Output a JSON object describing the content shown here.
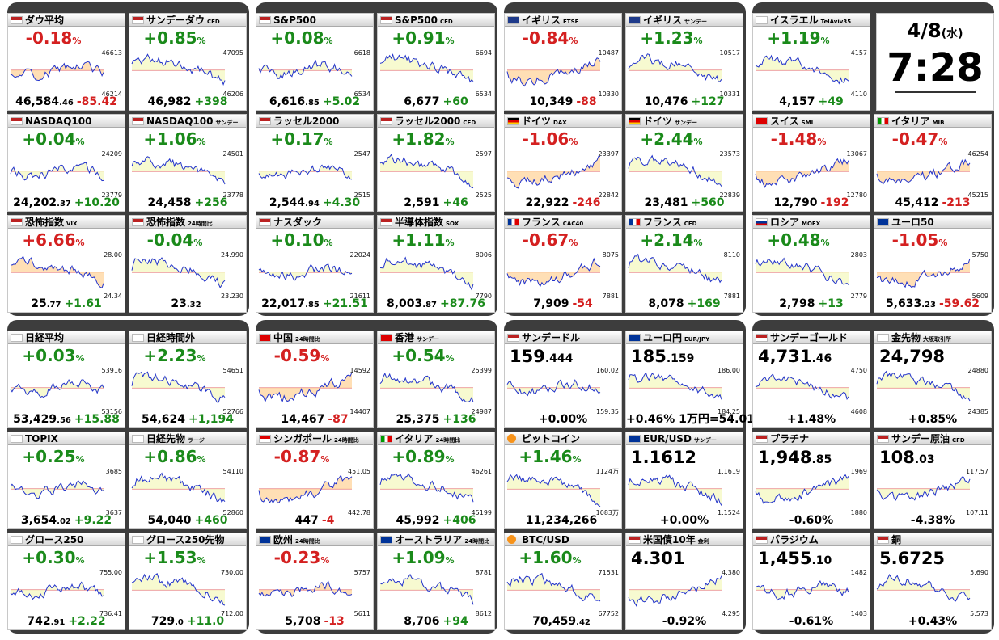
{
  "clock": {
    "date": "4/8",
    "weekday": "(水)",
    "time": "7:28"
  },
  "panels": [
    "top-1",
    "top-2",
    "top-3",
    "top-4",
    "bottom-1",
    "bottom-2",
    "bottom-3",
    "bottom-4"
  ],
  "cards": [
    {
      "id": "dow",
      "title": "ダウ平均",
      "sub": "",
      "flag": "us",
      "change": "-0.18",
      "dir": "dn",
      "hi": "46613",
      "lo": "46214",
      "price": "46,584",
      "dec": ".46",
      "delta": "-85.42",
      "trend": "flat"
    },
    {
      "id": "sunday-dow",
      "title": "サンデーダウ",
      "sub": "CFD",
      "flag": "us",
      "change": "+0.85",
      "dir": "up",
      "hi": "47095",
      "lo": "46206",
      "price": "46,982",
      "dec": "",
      "delta": "+398",
      "trend": "up"
    },
    {
      "id": "sp500",
      "title": "S&P500",
      "sub": "",
      "flag": "us",
      "change": "+0.08",
      "dir": "up",
      "hi": "6618",
      "lo": "6534",
      "price": "6,616",
      "dec": ".85",
      "delta": "+5.02",
      "trend": "flat"
    },
    {
      "id": "sp500-cfd",
      "title": "S&P500",
      "sub": "CFD",
      "flag": "us",
      "change": "+0.91",
      "dir": "up",
      "hi": "6694",
      "lo": "6534",
      "price": "6,677",
      "dec": "",
      "delta": "+60",
      "trend": "up"
    },
    {
      "id": "ftse",
      "title": "イギリス",
      "sub": "FTSE",
      "flag": "uk",
      "change": "-0.84",
      "dir": "dn",
      "hi": "10487",
      "lo": "10330",
      "price": "10,349",
      "dec": "",
      "delta": "-88",
      "trend": "down"
    },
    {
      "id": "uk-sunday",
      "title": "イギリス",
      "sub": "サンデー",
      "flag": "uk",
      "change": "+1.23",
      "dir": "up",
      "hi": "10517",
      "lo": "10331",
      "price": "10,476",
      "dec": "",
      "delta": "+127",
      "trend": "up"
    },
    {
      "id": "israel",
      "title": "イスラエル",
      "sub": "TelAviv35",
      "flag": "il",
      "change": "+1.19",
      "dir": "up",
      "hi": "4157",
      "lo": "4110",
      "price": "4,157",
      "dec": "",
      "delta": "+49",
      "trend": "up"
    },
    {
      "id": "nasdaq100",
      "title": "NASDAQ100",
      "sub": "",
      "flag": "us",
      "change": "+0.04",
      "dir": "up",
      "hi": "24209",
      "lo": "23779",
      "price": "24,202",
      "dec": ".37",
      "delta": "+10.20",
      "trend": "flat"
    },
    {
      "id": "nasdaq100-sunday",
      "title": "NASDAQ100",
      "sub": "サンデー",
      "flag": "us",
      "change": "+1.06",
      "dir": "up",
      "hi": "24501",
      "lo": "23778",
      "price": "24,458",
      "dec": "",
      "delta": "+256",
      "trend": "up"
    },
    {
      "id": "russell2000",
      "title": "ラッセル2000",
      "sub": "",
      "flag": "us",
      "change": "+0.17",
      "dir": "up",
      "hi": "2547",
      "lo": "2515",
      "price": "2,544",
      "dec": ".94",
      "delta": "+4.30",
      "trend": "flat"
    },
    {
      "id": "russell2000-cfd",
      "title": "ラッセル2000",
      "sub": "CFD",
      "flag": "us",
      "change": "+1.82",
      "dir": "up",
      "hi": "2597",
      "lo": "2525",
      "price": "2,591",
      "dec": "",
      "delta": "+46",
      "trend": "up"
    },
    {
      "id": "dax",
      "title": "ドイツ",
      "sub": "DAX",
      "flag": "de",
      "change": "-1.06",
      "dir": "dn",
      "hi": "23397",
      "lo": "22842",
      "price": "22,922",
      "dec": "",
      "delta": "-246",
      "trend": "down"
    },
    {
      "id": "de-sunday",
      "title": "ドイツ",
      "sub": "サンデー",
      "flag": "de",
      "change": "+2.44",
      "dir": "up",
      "hi": "23573",
      "lo": "22839",
      "price": "23,481",
      "dec": "",
      "delta": "+560",
      "trend": "up"
    },
    {
      "id": "smi",
      "title": "スイス",
      "sub": "SMI",
      "flag": "ch",
      "change": "-1.48",
      "dir": "dn",
      "hi": "13067",
      "lo": "12780",
      "price": "12,790",
      "dec": "",
      "delta": "-192",
      "trend": "down"
    },
    {
      "id": "mib",
      "title": "イタリア",
      "sub": "MIB",
      "flag": "it",
      "change": "-0.47",
      "dir": "dn",
      "hi": "46254",
      "lo": "45215",
      "price": "45,412",
      "dec": "",
      "delta": "-213",
      "trend": "down"
    },
    {
      "id": "vix",
      "title": "恐怖指数",
      "sub": "VIX",
      "flag": "us",
      "change": "+6.66",
      "dir": "dn",
      "hi": "28.00",
      "lo": "24.34",
      "price": "25",
      "dec": ".77",
      "delta": "+1.61",
      "trend": "up"
    },
    {
      "id": "vix-24h",
      "title": "恐怖指数",
      "sub": "24時間比",
      "flag": "us",
      "change": "-0.04",
      "dir": "up",
      "hi": "24.990",
      "lo": "23.230",
      "price": "23",
      "dec": ".32",
      "delta": "",
      "trend": "up"
    },
    {
      "id": "nasdaq",
      "title": "ナスダック",
      "sub": "",
      "flag": "us",
      "change": "+0.10",
      "dir": "up",
      "hi": "22024",
      "lo": "21611",
      "price": "22,017",
      "dec": ".85",
      "delta": "+21.51",
      "trend": "flat"
    },
    {
      "id": "sox",
      "title": "半導体指数",
      "sub": "SOX",
      "flag": "us",
      "change": "+1.11",
      "dir": "up",
      "hi": "8006",
      "lo": "7790",
      "price": "8,003",
      "dec": ".87",
      "delta": "+87.76",
      "trend": "up"
    },
    {
      "id": "cac40",
      "title": "フランス",
      "sub": "CAC40",
      "flag": "fr",
      "change": "-0.67",
      "dir": "dn",
      "hi": "8075",
      "lo": "7881",
      "price": "7,909",
      "dec": "",
      "delta": "-54",
      "trend": "down"
    },
    {
      "id": "fr-cfd",
      "title": "フランス",
      "sub": "CFD",
      "flag": "fr",
      "change": "+2.14",
      "dir": "up",
      "hi": "8110",
      "lo": "7881",
      "price": "8,078",
      "dec": "",
      "delta": "+169",
      "trend": "up"
    },
    {
      "id": "moex",
      "title": "ロシア",
      "sub": "MOEX",
      "flag": "ru",
      "change": "+0.48",
      "dir": "up",
      "hi": "2803",
      "lo": "2779",
      "price": "2,798",
      "dec": "",
      "delta": "+13",
      "trend": "up"
    },
    {
      "id": "euro50",
      "title": "ユーロ50",
      "sub": "",
      "flag": "eu",
      "change": "-1.05",
      "dir": "dn",
      "hi": "5750",
      "lo": "5609",
      "price": "5,633",
      "dec": ".23",
      "delta": "-59.62",
      "trend": "down"
    },
    {
      "id": "nikkei",
      "title": "日経平均",
      "sub": "",
      "flag": "jp",
      "change": "+0.03",
      "dir": "up",
      "hi": "53916",
      "lo": "53156",
      "price": "53,429",
      "dec": ".56",
      "delta": "+15.88",
      "trend": "flat"
    },
    {
      "id": "nikkei-after",
      "title": "日経時間外",
      "sub": "",
      "flag": "jp",
      "change": "+2.23",
      "dir": "up",
      "hi": "54651",
      "lo": "52766",
      "price": "54,624",
      "dec": "",
      "delta": "+1,194",
      "trend": "up"
    },
    {
      "id": "china",
      "title": "中国",
      "sub": "24時間比",
      "flag": "cn",
      "change": "-0.59",
      "dir": "dn",
      "hi": "14592",
      "lo": "14407",
      "price": "14,467",
      "dec": "",
      "delta": "-87",
      "trend": "down"
    },
    {
      "id": "hk-sunday",
      "title": "香港",
      "sub": "サンデー",
      "flag": "hk",
      "change": "+0.54",
      "dir": "up",
      "hi": "25399",
      "lo": "24987",
      "price": "25,375",
      "dec": "",
      "delta": "+136",
      "trend": "up"
    },
    {
      "id": "sunday-dollar",
      "title": "サンデードル",
      "sub": "",
      "flag": "us",
      "change": "159",
      "dir": "blk",
      "hi": "160.02",
      "lo": "159.35",
      "price": "159",
      "dec": ".444",
      "delta": "+0.00%",
      "trend": "flat"
    },
    {
      "id": "euro-yen",
      "title": "ユーロ円",
      "sub": "EUR/JPY",
      "flag": "eu",
      "change": "185",
      "dir": "blk",
      "hi": "186.00",
      "lo": "184.25",
      "price": "185",
      "dec": ".159",
      "delta": "+0.46%  1万円=54.01",
      "trend": "up"
    },
    {
      "id": "sunday-gold",
      "title": "サンデーゴールド",
      "sub": "",
      "flag": "us",
      "change": "4,731",
      "dir": "blk",
      "hi": "4750",
      "lo": "4608",
      "price": "4,731",
      "dec": ".46",
      "delta": "+1.48%",
      "trend": "up"
    },
    {
      "id": "gold-futures",
      "title": "金先物",
      "sub": "大阪取引所",
      "flag": "jp",
      "change": "24,798",
      "dir": "blk",
      "hi": "24880",
      "lo": "24385",
      "price": "24,798",
      "dec": "",
      "delta": "+0.85%",
      "trend": "up"
    },
    {
      "id": "topix",
      "title": "TOPIX",
      "sub": "",
      "flag": "jp",
      "change": "+0.25",
      "dir": "up",
      "hi": "3685",
      "lo": "3637",
      "price": "3,654",
      "dec": ".02",
      "delta": "+9.22",
      "trend": "flat"
    },
    {
      "id": "nikkei-futures",
      "title": "日経先物",
      "sub": "ラージ",
      "flag": "jp",
      "change": "+0.86",
      "dir": "up",
      "hi": "54110",
      "lo": "52860",
      "price": "54,040",
      "dec": "",
      "delta": "+460",
      "trend": "up"
    },
    {
      "id": "singapore",
      "title": "シンガポール",
      "sub": "24時間比",
      "flag": "sg",
      "change": "-0.87",
      "dir": "dn",
      "hi": "451.05",
      "lo": "442.78",
      "price": "447",
      "dec": "",
      "delta": "-4",
      "trend": "down"
    },
    {
      "id": "italy-24h",
      "title": "イタリア",
      "sub": "24時間比",
      "flag": "it",
      "change": "+0.89",
      "dir": "up",
      "hi": "46261",
      "lo": "45199",
      "price": "45,992",
      "dec": "",
      "delta": "+406",
      "trend": "up"
    },
    {
      "id": "bitcoin",
      "title": "ビットコイン",
      "sub": "",
      "flag": "btc",
      "change": "+1.46",
      "dir": "up",
      "hi": "1124万",
      "lo": "1083万",
      "price": "11,234,266",
      "dec": "",
      "delta": "",
      "trend": "up"
    },
    {
      "id": "eurusd",
      "title": "EUR/USD",
      "sub": "サンデー",
      "flag": "eu",
      "change": "1.1612",
      "dir": "blk",
      "hi": "1.1619",
      "lo": "1.1524",
      "price": "1.1612",
      "dec": "",
      "delta": "+0.00%",
      "trend": "up"
    },
    {
      "id": "platinum",
      "title": "プラチナ",
      "sub": "",
      "flag": "us",
      "change": "1,948",
      "dir": "blk",
      "hi": "1969",
      "lo": "1880",
      "price": "1,948",
      "dec": ".85",
      "delta": "-0.60%",
      "trend": "down"
    },
    {
      "id": "sunday-oil",
      "title": "サンデー原油",
      "sub": "CFD",
      "flag": "us",
      "change": "108",
      "dir": "blk",
      "hi": "117.57",
      "lo": "107.11",
      "price": "108",
      "dec": ".03",
      "delta": "-4.38%",
      "trend": "down"
    },
    {
      "id": "growth250",
      "title": "グロース250",
      "sub": "",
      "flag": "jp",
      "change": "+0.30",
      "dir": "up",
      "hi": "755.00",
      "lo": "736.41",
      "price": "742",
      "dec": ".91",
      "delta": "+2.22",
      "trend": "flat"
    },
    {
      "id": "growth250-futures",
      "title": "グロース250先物",
      "sub": "",
      "flag": "jp",
      "change": "+1.53",
      "dir": "up",
      "hi": "730.00",
      "lo": "712.00",
      "price": "729",
      "dec": ".0",
      "delta": "+11.0",
      "trend": "up"
    },
    {
      "id": "europe",
      "title": "欧州",
      "sub": "24時間比",
      "flag": "eu",
      "change": "-0.23",
      "dir": "dn",
      "hi": "5757",
      "lo": "5611",
      "price": "5,708",
      "dec": "",
      "delta": "-13",
      "trend": "flat"
    },
    {
      "id": "australia",
      "title": "オーストラリア",
      "sub": "24時間比",
      "flag": "au",
      "change": "+1.09",
      "dir": "up",
      "hi": "8781",
      "lo": "8612",
      "price": "8,706",
      "dec": "",
      "delta": "+94",
      "trend": "up"
    },
    {
      "id": "btcusd",
      "title": "BTC/USD",
      "sub": "",
      "flag": "btc",
      "change": "+1.60",
      "dir": "up",
      "hi": "71531",
      "lo": "67752",
      "price": "70,459",
      "dec": ".42",
      "delta": "",
      "trend": "up"
    },
    {
      "id": "us10y",
      "title": "米国債10年",
      "sub": "金利",
      "flag": "us",
      "change": "4.301",
      "dir": "blk",
      "hi": "4.380",
      "lo": "4.295",
      "price": "4.301",
      "dec": "",
      "delta": "-0.92%",
      "trend": "down"
    },
    {
      "id": "palladium",
      "title": "パラジウム",
      "sub": "",
      "flag": "us",
      "change": "1,455",
      "dir": "blk",
      "hi": "1482",
      "lo": "1403",
      "price": "1,455",
      "dec": ".10",
      "delta": "-0.61%",
      "trend": "flat"
    },
    {
      "id": "copper",
      "title": "銅",
      "sub": "",
      "flag": "us",
      "change": "5.6725",
      "dir": "blk",
      "hi": "5.690",
      "lo": "5.573",
      "price": "5.6725",
      "dec": "",
      "delta": "+0.43%",
      "trend": "up"
    }
  ]
}
